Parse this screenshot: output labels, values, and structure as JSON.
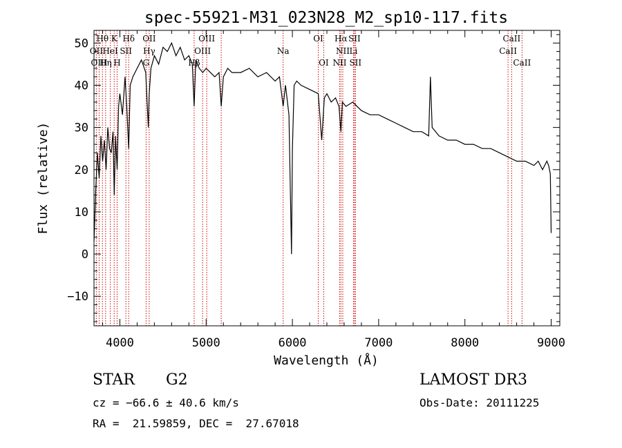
{
  "chart_data": {
    "type": "line",
    "title": "spec-55921-M31_023N28_M2_sp10-117.fits",
    "xlabel": "Wavelength (Å)",
    "ylabel": "Flux (relative)",
    "xlim": [
      3700,
      9100
    ],
    "ylim": [
      -17,
      53
    ],
    "xticks": [
      4000,
      5000,
      6000,
      7000,
      8000,
      9000
    ],
    "xtick_labels": [
      "4000",
      "5000",
      "6000",
      "7000",
      "8000",
      "9000"
    ],
    "yticks": [
      -10,
      0,
      10,
      20,
      30,
      40,
      50
    ],
    "ytick_labels": [
      "−10",
      "0",
      "10",
      "20",
      "30",
      "40",
      "50"
    ],
    "series": [
      {
        "name": "spectrum",
        "x": [
          3700,
          3720,
          3740,
          3760,
          3780,
          3800,
          3820,
          3840,
          3860,
          3880,
          3900,
          3920,
          3935,
          3950,
          3968,
          3985,
          4000,
          4030,
          4060,
          4080,
          4102,
          4120,
          4150,
          4200,
          4250,
          4300,
          4330,
          4340,
          4360,
          4400,
          4450,
          4500,
          4550,
          4600,
          4650,
          4700,
          4750,
          4800,
          4840,
          4861,
          4880,
          4920,
          4960,
          5000,
          5050,
          5100,
          5150,
          5175,
          5200,
          5250,
          5300,
          5400,
          5500,
          5600,
          5700,
          5800,
          5850,
          5893,
          5920,
          5960,
          5990,
          6000,
          6020,
          6050,
          6100,
          6200,
          6300,
          6340,
          6370,
          6400,
          6450,
          6500,
          6540,
          6563,
          6580,
          6620,
          6700,
          6800,
          6900,
          7000,
          7100,
          7200,
          7300,
          7400,
          7500,
          7580,
          7600,
          7620,
          7700,
          7800,
          7900,
          8000,
          8100,
          8200,
          8300,
          8400,
          8500,
          8600,
          8700,
          8800,
          8850,
          8900,
          8950,
          8970,
          8990,
          9000
        ],
        "y": [
          3,
          15,
          24,
          18,
          28,
          22,
          27,
          20,
          30,
          25,
          24,
          29,
          14,
          28,
          20,
          35,
          38,
          33,
          42,
          35,
          25,
          40,
          42,
          44,
          46,
          43,
          30,
          38,
          44,
          47,
          45,
          49,
          48,
          50,
          47,
          49,
          46,
          47,
          45,
          35,
          46,
          44,
          43,
          44,
          43,
          42,
          43,
          35,
          42,
          44,
          43,
          43,
          44,
          42,
          43,
          41,
          42,
          35,
          40,
          33,
          0,
          25,
          40,
          41,
          40,
          39,
          38,
          27,
          37,
          38,
          36,
          37,
          35,
          29,
          36,
          35,
          36,
          34,
          33,
          33,
          32,
          31,
          30,
          29,
          29,
          28,
          42,
          30,
          28,
          27,
          27,
          26,
          26,
          25,
          25,
          24,
          23,
          22,
          22,
          21,
          22,
          20,
          22,
          21,
          19,
          5
        ]
      }
    ],
    "line_labels": [
      {
        "text": "Hθ",
        "wave": 3798,
        "row": 1
      },
      {
        "text": "K",
        "wave": 3934,
        "row": 1
      },
      {
        "text": "Hδ",
        "wave": 4102,
        "row": 1
      },
      {
        "text": "OII",
        "wave": 4340,
        "row": 1
      },
      {
        "text": "OIII",
        "wave": 5007,
        "row": 1
      },
      {
        "text": "OI",
        "wave": 6300,
        "row": 1
      },
      {
        "text": "Hα",
        "wave": 6563,
        "row": 1
      },
      {
        "text": "SII",
        "wave": 6720,
        "row": 1
      },
      {
        "text": "CaII",
        "wave": 8542,
        "row": 1
      },
      {
        "text": "CaII",
        "wave": 8500,
        "row": 2
      },
      {
        "text": "CaII",
        "wave": 8662,
        "row": 3
      },
      {
        "text": "OII",
        "wave": 3727,
        "row": 2
      },
      {
        "text": "HeI",
        "wave": 3889,
        "row": 2
      },
      {
        "text": "SII",
        "wave": 4070,
        "row": 2
      },
      {
        "text": "Hγ",
        "wave": 4340,
        "row": 2
      },
      {
        "text": "OIII",
        "wave": 4959,
        "row": 2
      },
      {
        "text": "Na",
        "wave": 5893,
        "row": 2
      },
      {
        "text": "NII",
        "wave": 6584,
        "row": 2
      },
      {
        "text": "Li",
        "wave": 6708,
        "row": 2
      },
      {
        "text": "OIII",
        "wave": 3760,
        "row": 3
      },
      {
        "text": "Hη",
        "wave": 3835,
        "row": 3
      },
      {
        "text": "H",
        "wave": 3968,
        "row": 3
      },
      {
        "text": "G",
        "wave": 4304,
        "row": 3
      },
      {
        "text": "Hβ",
        "wave": 4861,
        "row": 3
      },
      {
        "text": "OI",
        "wave": 6363,
        "row": 3
      },
      {
        "text": "NII",
        "wave": 6548,
        "row": 3
      },
      {
        "text": "SII",
        "wave": 6731,
        "row": 3
      }
    ],
    "marker_lines": [
      3727,
      3760,
      3798,
      3835,
      3889,
      3934,
      3968,
      4070,
      4102,
      4304,
      4340,
      4861,
      4959,
      5007,
      5175,
      5893,
      6300,
      6363,
      6548,
      6563,
      6584,
      6708,
      6720,
      6731,
      8500,
      8542,
      8662
    ],
    "marker_color": "#cc0000",
    "line_color": "#000000",
    "grid": false,
    "legend": "none"
  },
  "info": {
    "class": "STAR",
    "subclass": "G2",
    "survey": "LAMOST DR3",
    "cz": "cz = −66.6 ± 40.6 km/s",
    "obs_date": "Obs-Date: 20111225",
    "coords": "RA =  21.59859, DEC =  27.67018"
  }
}
